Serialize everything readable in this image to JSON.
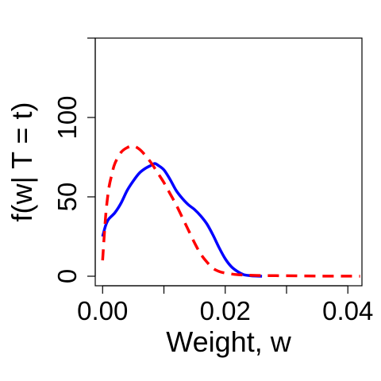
{
  "chart_data": {
    "type": "line",
    "xlabel": "Weight, w",
    "ylabel": "f(w| T = t)",
    "xlim": [
      -0.0012,
      0.0423
    ],
    "ylim": [
      -6,
      150
    ],
    "x_ticks": [
      0.0,
      0.02,
      0.04
    ],
    "x_tick_labels": [
      "0.00",
      "0.02",
      "0.04"
    ],
    "x_minor_ticks": [
      0.01,
      0.03
    ],
    "y_ticks": [
      0,
      50,
      100
    ],
    "y_tick_labels": [
      "0",
      "50",
      "100"
    ],
    "y_minor_ticks": [
      150
    ],
    "series": [
      {
        "color": "#0000ff",
        "dash": "solid",
        "points": [
          [
            0.0,
            25
          ],
          [
            0.0005,
            32
          ],
          [
            0.001,
            36
          ],
          [
            0.002,
            40
          ],
          [
            0.003,
            46
          ],
          [
            0.004,
            54
          ],
          [
            0.005,
            60
          ],
          [
            0.006,
            65
          ],
          [
            0.007,
            68
          ],
          [
            0.008,
            70
          ],
          [
            0.0085,
            71
          ],
          [
            0.009,
            70
          ],
          [
            0.01,
            67
          ],
          [
            0.011,
            61
          ],
          [
            0.012,
            54
          ],
          [
            0.013,
            49
          ],
          [
            0.014,
            45
          ],
          [
            0.015,
            42
          ],
          [
            0.016,
            38
          ],
          [
            0.017,
            33
          ],
          [
            0.018,
            26
          ],
          [
            0.019,
            18
          ],
          [
            0.02,
            11
          ],
          [
            0.021,
            6
          ],
          [
            0.022,
            3
          ],
          [
            0.023,
            1
          ],
          [
            0.024,
            0.4
          ],
          [
            0.025,
            0.1
          ],
          [
            0.026,
            0
          ]
        ]
      },
      {
        "color": "#ff0000",
        "dash": "dashed",
        "points": [
          [
            0.0,
            10
          ],
          [
            0.0005,
            38
          ],
          [
            0.001,
            55
          ],
          [
            0.0015,
            64
          ],
          [
            0.002,
            71
          ],
          [
            0.003,
            78
          ],
          [
            0.004,
            81
          ],
          [
            0.005,
            82
          ],
          [
            0.006,
            80
          ],
          [
            0.007,
            76
          ],
          [
            0.008,
            71
          ],
          [
            0.009,
            65
          ],
          [
            0.01,
            59
          ],
          [
            0.011,
            52
          ],
          [
            0.012,
            45
          ],
          [
            0.013,
            37
          ],
          [
            0.014,
            29
          ],
          [
            0.015,
            21
          ],
          [
            0.016,
            14
          ],
          [
            0.017,
            9
          ],
          [
            0.018,
            5
          ],
          [
            0.019,
            3
          ],
          [
            0.02,
            2
          ],
          [
            0.022,
            1
          ],
          [
            0.025,
            0.5
          ],
          [
            0.03,
            0.3
          ],
          [
            0.035,
            0.1
          ],
          [
            0.04,
            0.05
          ],
          [
            0.042,
            0
          ]
        ]
      }
    ]
  }
}
